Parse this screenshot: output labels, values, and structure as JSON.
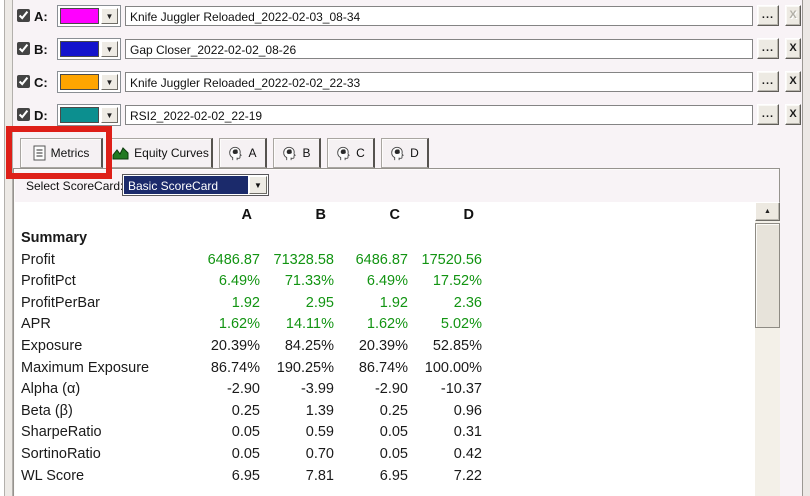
{
  "strategies": [
    {
      "id": "A",
      "label": "A:",
      "checked": true,
      "color": "#FF00FF",
      "name": "Knife Juggler Reloaded_2022-02-03_08-34",
      "browse_label": "...",
      "remove_label": "X",
      "remove_enabled": false
    },
    {
      "id": "B",
      "label": "B:",
      "checked": true,
      "color": "#1414CC",
      "name": "Gap Closer_2022-02-02_08-26",
      "browse_label": "...",
      "remove_label": "X",
      "remove_enabled": true
    },
    {
      "id": "C",
      "label": "C:",
      "checked": true,
      "color": "#FFA500",
      "name": "Knife Juggler Reloaded_2022-02-02_22-33",
      "browse_label": "...",
      "remove_label": "X",
      "remove_enabled": true
    },
    {
      "id": "D",
      "label": "D:",
      "checked": true,
      "color": "#0C8F8F",
      "name": "RSI2_2022-02-02_22-19",
      "browse_label": "...",
      "remove_label": "X",
      "remove_enabled": true
    }
  ],
  "tab_bar": {
    "tabs": [
      {
        "label": "Metrics",
        "icon": "metrics-document-icon",
        "selected": true,
        "annotated": true
      },
      {
        "label": "Equity Curves",
        "icon": "equity-curves-chart-icon",
        "selected": false,
        "annotated": false
      },
      {
        "label": "A",
        "icon": "strategy-head-icon",
        "selected": false,
        "annotated": false
      },
      {
        "label": "B",
        "icon": "strategy-head-icon",
        "selected": false,
        "annotated": false
      },
      {
        "label": "C",
        "icon": "strategy-head-icon",
        "selected": false,
        "annotated": false
      },
      {
        "label": "D",
        "icon": "strategy-head-icon",
        "selected": false,
        "annotated": false
      }
    ]
  },
  "scorecard": {
    "label": "Select ScoreCard:",
    "selected_option": "Basic ScoreCard",
    "dropdown_icon": "chevron-down-icon"
  },
  "metrics_table": {
    "columns": [
      "A",
      "B",
      "C",
      "D"
    ],
    "section_header": "Summary",
    "rows": [
      {
        "label": "Profit",
        "values": [
          "6486.87",
          "71328.58",
          "6486.87",
          "17520.56"
        ],
        "positive": true
      },
      {
        "label": "ProfitPct",
        "values": [
          "6.49%",
          "71.33%",
          "6.49%",
          "17.52%"
        ],
        "positive": true
      },
      {
        "label": "ProfitPerBar",
        "values": [
          "1.92",
          "2.95",
          "1.92",
          "2.36"
        ],
        "positive": true
      },
      {
        "label": "APR",
        "values": [
          "1.62%",
          "14.11%",
          "1.62%",
          "5.02%"
        ],
        "positive": true
      },
      {
        "label": "Exposure",
        "values": [
          "20.39%",
          "84.25%",
          "20.39%",
          "52.85%"
        ],
        "positive": false
      },
      {
        "label": "Maximum Exposure",
        "values": [
          "86.74%",
          "190.25%",
          "86.74%",
          "100.00%"
        ],
        "positive": false
      },
      {
        "label": "Alpha (α)",
        "values": [
          "-2.90",
          "-3.99",
          "-2.90",
          "-10.37"
        ],
        "positive": false
      },
      {
        "label": "Beta (β)",
        "values": [
          "0.25",
          "1.39",
          "0.25",
          "0.96"
        ],
        "positive": false
      },
      {
        "label": "SharpeRatio",
        "values": [
          "0.05",
          "0.59",
          "0.05",
          "0.31"
        ],
        "positive": false
      },
      {
        "label": "SortinoRatio",
        "values": [
          "0.05",
          "0.70",
          "0.05",
          "0.42"
        ],
        "positive": false
      },
      {
        "label": "WL Score",
        "values": [
          "6.95",
          "7.81",
          "6.95",
          "7.22"
        ],
        "positive": false
      }
    ]
  },
  "annotation": {
    "shape": "rectangle",
    "color": "#DE1F18",
    "target": "Metrics tab"
  },
  "ui_glyphs": {
    "combo_arrow": "▼",
    "scroll_up_arrow": "▲"
  },
  "colors": {
    "positive_value": "#129412",
    "scorecard_highlight": "#1B2A6B",
    "strategy_a": "#FF00FF",
    "strategy_b": "#1414CC",
    "strategy_c": "#FFA500",
    "strategy_d": "#0C8F8F"
  }
}
